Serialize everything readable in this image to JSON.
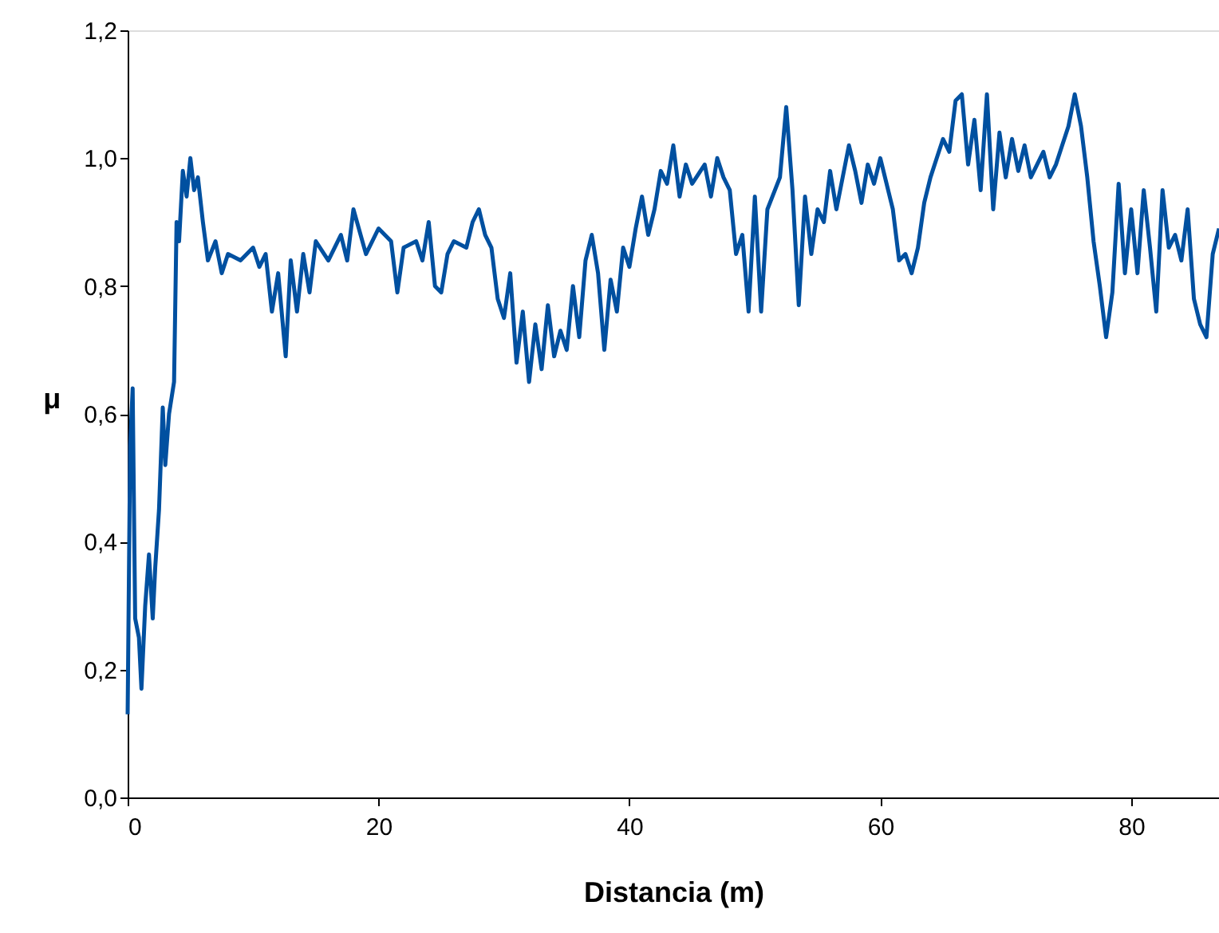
{
  "chart_data": {
    "type": "line",
    "xlabel": "Distancia (m)",
    "ylabel": "μ",
    "xlim": [
      0,
      87
    ],
    "xticks": [
      0,
      20,
      40,
      60,
      80
    ],
    "ylim": [
      0,
      1.2
    ],
    "yticks": [
      {
        "value": 0,
        "label": "0,0"
      },
      {
        "value": 0.2,
        "label": "0,2"
      },
      {
        "value": 0.4,
        "label": "0,4"
      },
      {
        "value": 0.6,
        "label": "0,6"
      },
      {
        "value": 0.8,
        "label": "0,8"
      },
      {
        "value": 1.0,
        "label": "1,0"
      },
      {
        "value": 1.2,
        "label": "1,2"
      }
    ],
    "grid": false,
    "marker": "none",
    "line_style": "solid",
    "series": [
      {
        "color": "#0050a0",
        "x": [
          0,
          0.2,
          0.4,
          0.6,
          0.9,
          1.1,
          1.4,
          1.7,
          2.0,
          2.2,
          2.5,
          2.8,
          3.0,
          3.3,
          3.7,
          3.9,
          4.1,
          4.4,
          4.7,
          5.0,
          5.3,
          5.6,
          6.0,
          6.4,
          7,
          7.5,
          8,
          9,
          10,
          10.5,
          11,
          11.5,
          12,
          12.6,
          13,
          13.5,
          14,
          14.5,
          15,
          16,
          17,
          17.5,
          18,
          19,
          20,
          21,
          21.5,
          22,
          23,
          23.5,
          24,
          24.5,
          25,
          25.5,
          26,
          27,
          27.5,
          28,
          28.5,
          29,
          29.5,
          30,
          30.5,
          31,
          31.5,
          32,
          32.5,
          33,
          33.5,
          34,
          34.5,
          35,
          35.5,
          36,
          36.5,
          37,
          37.5,
          38,
          38.5,
          39,
          39.5,
          40,
          40.5,
          41,
          41.5,
          42,
          42.5,
          43,
          43.5,
          44,
          44.5,
          45,
          46,
          46.5,
          47,
          47.5,
          48,
          48.5,
          49,
          49.5,
          50,
          50.5,
          51,
          52,
          52.5,
          53,
          53.5,
          54,
          54.5,
          55,
          55.5,
          56,
          56.5,
          57,
          57.5,
          58,
          58.5,
          59,
          59.5,
          60,
          60.5,
          61,
          61.5,
          62,
          62.5,
          63,
          63.5,
          64,
          64.5,
          65,
          65.5,
          66,
          66.5,
          67,
          67.5,
          68,
          68.5,
          69,
          69.5,
          70,
          70.5,
          71,
          71.5,
          72,
          73,
          73.5,
          74,
          74.5,
          75,
          75.5,
          76,
          76.5,
          77,
          77.5,
          78,
          78.5,
          79,
          79.5,
          80,
          80.5,
          81,
          81.5,
          82,
          82.5,
          83,
          83.5,
          84,
          84.5,
          85,
          85.5,
          86,
          86.5,
          87
        ],
        "values": [
          0.13,
          0.55,
          0.64,
          0.28,
          0.25,
          0.17,
          0.3,
          0.38,
          0.28,
          0.36,
          0.45,
          0.61,
          0.52,
          0.6,
          0.65,
          0.9,
          0.87,
          0.98,
          0.94,
          1.0,
          0.95,
          0.97,
          0.9,
          0.84,
          0.87,
          0.82,
          0.85,
          0.84,
          0.86,
          0.83,
          0.85,
          0.76,
          0.82,
          0.69,
          0.84,
          0.76,
          0.85,
          0.79,
          0.87,
          0.84,
          0.88,
          0.84,
          0.92,
          0.85,
          0.89,
          0.87,
          0.79,
          0.86,
          0.87,
          0.84,
          0.9,
          0.8,
          0.79,
          0.85,
          0.87,
          0.86,
          0.9,
          0.92,
          0.88,
          0.86,
          0.78,
          0.75,
          0.82,
          0.68,
          0.76,
          0.65,
          0.74,
          0.67,
          0.77,
          0.69,
          0.73,
          0.7,
          0.8,
          0.72,
          0.84,
          0.88,
          0.82,
          0.7,
          0.81,
          0.76,
          0.86,
          0.83,
          0.89,
          0.94,
          0.88,
          0.92,
          0.98,
          0.96,
          1.02,
          0.94,
          0.99,
          0.96,
          0.99,
          0.94,
          1.0,
          0.97,
          0.95,
          0.85,
          0.88,
          0.76,
          0.94,
          0.76,
          0.92,
          0.97,
          1.08,
          0.95,
          0.77,
          0.94,
          0.85,
          0.92,
          0.9,
          0.98,
          0.92,
          0.97,
          1.02,
          0.98,
          0.93,
          0.99,
          0.96,
          1.0,
          0.96,
          0.92,
          0.84,
          0.85,
          0.82,
          0.86,
          0.93,
          0.97,
          1.0,
          1.03,
          1.01,
          1.09,
          1.1,
          0.99,
          1.06,
          0.95,
          1.1,
          0.92,
          1.04,
          0.97,
          1.03,
          0.98,
          1.02,
          0.97,
          1.01,
          0.97,
          0.99,
          1.02,
          1.05,
          1.1,
          1.05,
          0.97,
          0.87,
          0.8,
          0.72,
          0.79,
          0.96,
          0.82,
          0.92,
          0.82,
          0.95,
          0.86,
          0.76,
          0.95,
          0.86,
          0.88,
          0.84,
          0.92,
          0.78,
          0.74,
          0.72,
          0.85,
          0.89
        ]
      }
    ]
  }
}
